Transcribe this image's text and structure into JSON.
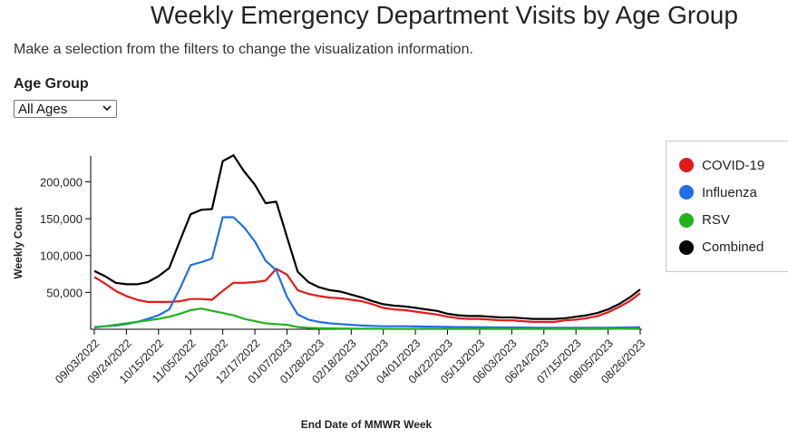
{
  "page": {
    "title": "Weekly Emergency Department Visits by Age Group",
    "subtitle": "Make a selection from the filters to change the visualization information.",
    "filter": {
      "label": "Age Group",
      "selected": "All Ages"
    }
  },
  "colors": {
    "covid": "#e31a1c",
    "influenza": "#1f6fe5",
    "rsv": "#22b21f",
    "combined": "#000000"
  },
  "chart_data": {
    "type": "line",
    "ylabel": "Weekly Count",
    "xlabel": "End Date of MMWR Week",
    "ylim": [
      0,
      235000
    ],
    "yticks": [
      50000,
      100000,
      150000,
      200000
    ],
    "ytick_labels": [
      "50,000",
      "100,000",
      "150,000",
      "200,000"
    ],
    "xtick_labels": [
      "09/03/2022",
      "09/24/2022",
      "10/15/2022",
      "11/05/2022",
      "11/26/2022",
      "12/17/2022",
      "01/07/2023",
      "01/28/2023",
      "02/18/2023",
      "03/11/2023",
      "04/01/2023",
      "04/22/2023",
      "05/13/2023",
      "06/03/2023",
      "06/24/2023",
      "07/15/2023",
      "08/05/2023",
      "08/26/2023"
    ],
    "xtick_indices": [
      0,
      3,
      6,
      9,
      12,
      15,
      18,
      21,
      24,
      27,
      30,
      33,
      36,
      39,
      42,
      45,
      48,
      51
    ],
    "x_count": 52,
    "grid": false,
    "legend_position": "right",
    "series": [
      {
        "name": "COVID-19",
        "color_key": "covid",
        "values": [
          71000,
          62000,
          52000,
          45000,
          40000,
          37000,
          37000,
          37000,
          38000,
          41000,
          41000,
          40000,
          52000,
          63000,
          63000,
          64000,
          66000,
          82000,
          74000,
          53000,
          48000,
          45000,
          43000,
          42000,
          40000,
          38000,
          34000,
          29000,
          27000,
          26000,
          24000,
          22000,
          20000,
          17000,
          15000,
          14000,
          14000,
          13000,
          12000,
          12000,
          11000,
          10000,
          10000,
          10000,
          12000,
          13000,
          15000,
          18000,
          23000,
          30000,
          38000,
          49000
        ]
      },
      {
        "name": "Influenza",
        "color_key": "influenza",
        "values": [
          3000,
          4000,
          5000,
          7000,
          10000,
          14000,
          19000,
          27000,
          55000,
          87000,
          91000,
          96000,
          152000,
          152000,
          138000,
          119000,
          93000,
          80000,
          44000,
          20000,
          13000,
          10000,
          8000,
          7000,
          6000,
          5000,
          4500,
          4000,
          4000,
          4000,
          3800,
          3600,
          3400,
          3200,
          3000,
          3000,
          2800,
          2600,
          2500,
          2400,
          2300,
          2200,
          2100,
          2000,
          2000,
          2000,
          2000,
          2000,
          2100,
          2300,
          2500,
          2800
        ]
      },
      {
        "name": "RSV",
        "color_key": "rsv",
        "values": [
          2500,
          4000,
          6000,
          8000,
          10000,
          12000,
          14000,
          17000,
          21000,
          26000,
          28000,
          25000,
          22000,
          19000,
          14000,
          11000,
          8000,
          7000,
          6000,
          3000,
          2000,
          1500,
          1200,
          1000,
          900,
          800,
          700,
          600,
          500,
          500,
          500,
          500,
          500,
          500,
          500,
          500,
          500,
          500,
          500,
          500,
          500,
          500,
          500,
          500,
          500,
          500,
          500,
          500,
          600,
          700,
          800,
          1000
        ]
      },
      {
        "name": "Combined",
        "color_key": "combined",
        "values": [
          79000,
          72000,
          63000,
          61000,
          61000,
          64000,
          72000,
          83000,
          120000,
          156000,
          162000,
          163000,
          228000,
          236000,
          214000,
          196000,
          171000,
          173000,
          125000,
          78000,
          64000,
          57000,
          53000,
          51000,
          47000,
          43000,
          38000,
          34000,
          32000,
          31000,
          29000,
          27000,
          25000,
          21000,
          19000,
          18000,
          18000,
          17000,
          16000,
          16000,
          15000,
          14000,
          14000,
          14000,
          15000,
          17000,
          19000,
          22000,
          27000,
          34000,
          43000,
          54000
        ]
      }
    ]
  }
}
